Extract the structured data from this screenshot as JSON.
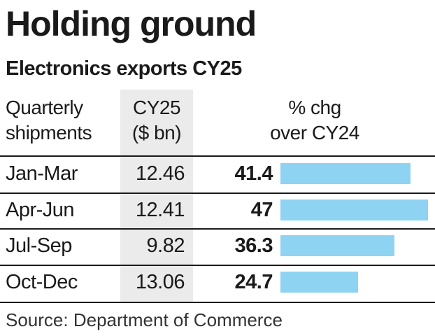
{
  "chart_data": {
    "type": "table",
    "title": "Holding ground",
    "subtitle": "Electronics exports CY25",
    "columns": {
      "quarter": [
        "Quarterly",
        "shipments"
      ],
      "value": [
        "CY25",
        "($ bn)"
      ],
      "pct": [
        "% chg",
        "over CY24"
      ]
    },
    "rows": [
      {
        "quarter": "Jan-Mar",
        "value": "12.46",
        "pct": "41.4"
      },
      {
        "quarter": "Apr-Jun",
        "value": "12.41",
        "pct": "47"
      },
      {
        "quarter": "Jul-Sep",
        "value": "9.82",
        "pct": "36.3"
      },
      {
        "quarter": "Oct-Dec",
        "value": "13.06",
        "pct": "24.7"
      }
    ],
    "pct_max": 47,
    "bar_color": "#8ed4f2",
    "source": "Source: Department of Commerce"
  }
}
